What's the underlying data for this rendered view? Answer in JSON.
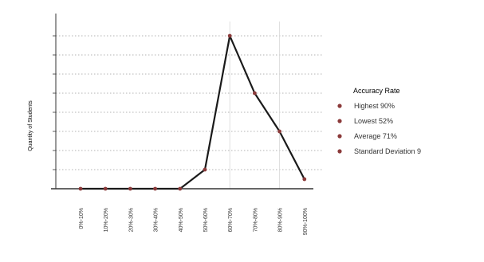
{
  "chart_data": {
    "type": "line",
    "title": "",
    "xlabel": "",
    "ylabel": "Quantity of Students",
    "categories": [
      "0%-10%",
      "10%-20%",
      "20%-30%",
      "30%-40%",
      "40%-50%",
      "50%-60%",
      "60%-70%",
      "70%-80%",
      "80%-90%",
      "90%-100%"
    ],
    "series": [
      {
        "values": [
          0,
          0,
          0,
          0,
          0,
          1,
          8,
          5,
          3,
          0.5
        ]
      }
    ],
    "ylim": [
      0,
      8
    ],
    "grid": true,
    "legend": {
      "title": "Accuracy Rate",
      "position": "right",
      "items": [
        "Highest 90%",
        "Lowest 52%",
        "Average 71%",
        "Standard Deviation 9"
      ]
    },
    "colors": {
      "line": "#1a1a1a",
      "marker": "#8b3a3a",
      "grid": "#9a9a9a",
      "axis": "#333333",
      "text": "#333333"
    }
  }
}
